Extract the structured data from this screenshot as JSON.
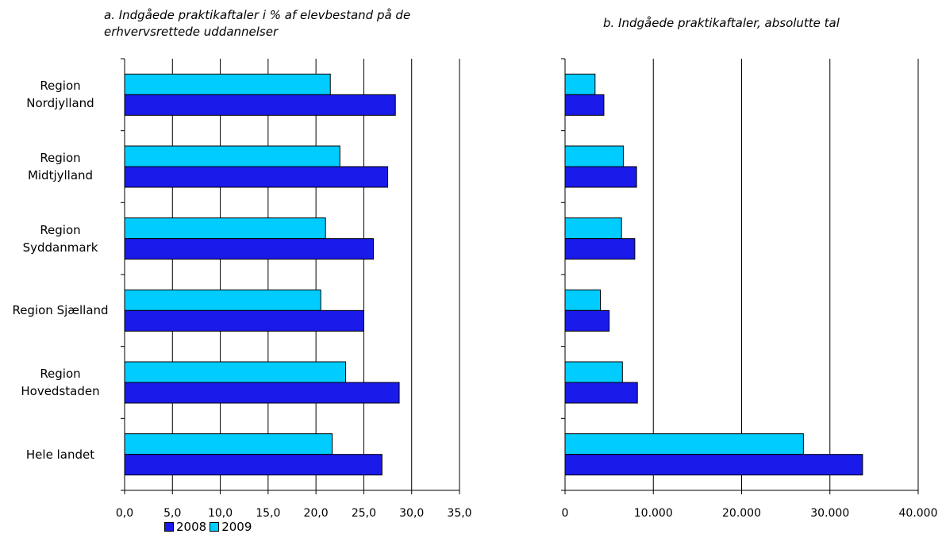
{
  "chart_data": [
    {
      "type": "bar",
      "orientation": "horizontal",
      "title": "a. Indgåede praktikaftaler i % af elevbestand på de erhvervsrettede uddannelser",
      "categories": [
        "Region Nordjylland",
        "Region Midtjylland",
        "Region Syddanmark",
        "Region Sjælland",
        "Region Hovedstaden",
        "Hele landet"
      ],
      "category_labels": [
        [
          "Region",
          "Nordjylland"
        ],
        [
          "Region",
          "Midtjylland"
        ],
        [
          "Region",
          "Syddanmark"
        ],
        [
          "Region Sjælland"
        ],
        [
          "Region",
          "Hovedstaden"
        ],
        [
          "Hele landet"
        ]
      ],
      "series": [
        {
          "name": "2009",
          "values": [
            21.5,
            22.5,
            21.0,
            20.5,
            23.1,
            21.7
          ]
        },
        {
          "name": "2008",
          "values": [
            28.3,
            27.5,
            26.0,
            25.0,
            28.7,
            26.9
          ]
        }
      ],
      "xlim": [
        0,
        35
      ],
      "ticks": [
        "0,0",
        "5,0",
        "10,0",
        "15,0",
        "20,0",
        "25,0",
        "30,0",
        "35,0"
      ],
      "grid": true
    },
    {
      "type": "bar",
      "orientation": "horizontal",
      "title": "b. Indgåede praktikaftaler, absolutte tal",
      "categories": [
        "Region Nordjylland",
        "Region Midtjylland",
        "Region Syddanmark",
        "Region Sjælland",
        "Region Hovedstaden",
        "Hele landet"
      ],
      "series": [
        {
          "name": "2009",
          "values": [
            3400,
            6600,
            6400,
            4000,
            6500,
            27000
          ]
        },
        {
          "name": "2008",
          "values": [
            4400,
            8100,
            7900,
            5000,
            8200,
            33700
          ]
        }
      ],
      "xlim": [
        0,
        40000
      ],
      "ticks": [
        "0",
        "10.000",
        "20.000",
        "30.000",
        "40.000"
      ],
      "grid": true
    }
  ],
  "legend": {
    "placement": "bottom-left",
    "items": [
      {
        "label": "2008",
        "color": "#1a1aea"
      },
      {
        "label": "2009",
        "color": "#00ccff"
      }
    ]
  },
  "colors": {
    "2008": "#1a1aea",
    "2009": "#00ccff"
  }
}
